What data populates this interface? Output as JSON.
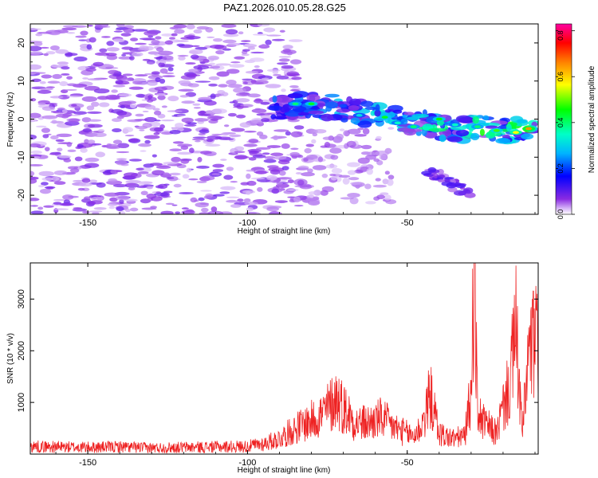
{
  "figure_title": "PAZ1.2026.010.05.28.G25",
  "chart_data": [
    {
      "type": "heatmap",
      "title": "PAZ1.2026.010.05.28.G25",
      "xlabel": "Height of straight line (km)",
      "ylabel": "Frequency (Hz)",
      "xlim": [
        -168,
        -9
      ],
      "ylim": [
        -25,
        25
      ],
      "xticks": [
        -150,
        -100,
        -50
      ],
      "yticks": [
        -20,
        -10,
        0,
        10,
        20
      ],
      "xtick_labels": [
        "-150",
        "-100",
        "-50"
      ],
      "ytick_labels": [
        "-20",
        "-10",
        "0",
        "10",
        "20"
      ],
      "colorbar": {
        "label": "Normalized spectral amplitude",
        "range": [
          0.0,
          0.83
        ],
        "ticks": [
          0.0,
          0.2,
          0.4,
          0.6,
          0.8
        ],
        "tick_labels": [
          "0.0",
          "0.2",
          "0.4",
          "0.6",
          "0.8"
        ],
        "colors": [
          "#ffffff",
          "#c8a0f0",
          "#8a2be2",
          "#0000ff",
          "#00ffff",
          "#00ff00",
          "#ffff00",
          "#ff8000",
          "#ff0000",
          "#ff00a0"
        ]
      },
      "ridge": {
        "description_points_x": [
          -92,
          -86,
          -80,
          -72,
          -64,
          -58,
          -52,
          -46,
          -40,
          -34,
          -28,
          -22,
          -16,
          -10
        ],
        "description_points_y": [
          3,
          3.5,
          4,
          3,
          1.5,
          1,
          0,
          -1,
          -2,
          -3,
          -2,
          -3,
          -3,
          -2
        ]
      }
    },
    {
      "type": "line",
      "xlabel": "Height of straight line (km)",
      "ylabel": "SNR (10 * v/v)",
      "xlim": [
        -168,
        -9
      ],
      "ylim": [
        0,
        3700
      ],
      "xticks": [
        -150,
        -100,
        -50
      ],
      "yticks": [
        1000,
        2000,
        3000
      ],
      "xtick_labels": [
        "-150",
        "-100",
        "-50"
      ],
      "ytick_labels": [
        "1000",
        "2000",
        "3000"
      ],
      "line_color": "#ee2222",
      "series": [
        {
          "name": "SNR",
          "x": [
            -168,
            -160,
            -150,
            -140,
            -130,
            -120,
            -110,
            -100,
            -95,
            -90,
            -85,
            -80,
            -76,
            -72,
            -70,
            -66,
            -62,
            -58,
            -55,
            -52,
            -50,
            -48,
            -46,
            -44,
            -43,
            -40,
            -36,
            -32,
            -30,
            -29,
            -28,
            -26,
            -22,
            -20,
            -18,
            -16,
            -14,
            -12,
            -10,
            -9
          ],
          "y": [
            150,
            140,
            130,
            140,
            120,
            130,
            140,
            150,
            200,
            300,
            500,
            650,
            800,
            1100,
            900,
            600,
            600,
            700,
            550,
            450,
            400,
            350,
            500,
            800,
            1200,
            400,
            300,
            350,
            1200,
            3700,
            800,
            600,
            400,
            900,
            1300,
            2400,
            400,
            1900,
            2200,
            2000
          ]
        }
      ]
    }
  ]
}
